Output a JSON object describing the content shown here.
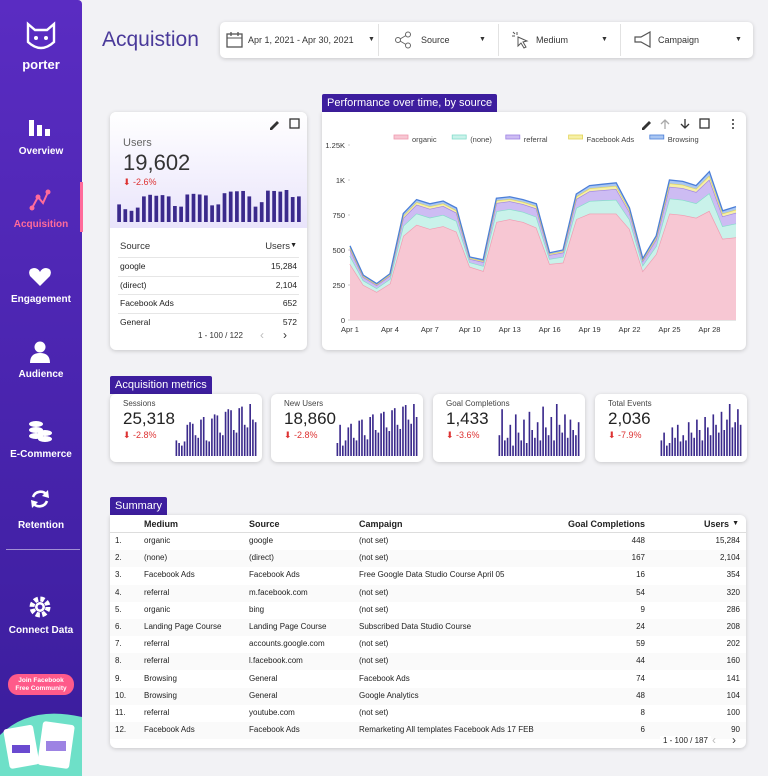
{
  "sidebar": {
    "logo": "porter",
    "nav": [
      "Overview",
      "Acquisition",
      "Engagement",
      "Audience",
      "E-Commerce",
      "Retention"
    ],
    "connect": "Connect Data",
    "community": [
      "Join Facebook",
      "Free Community"
    ]
  },
  "header": {
    "title": "Acquistion",
    "filters": [
      "Apr 1, 2021 - Apr 30, 2021",
      "Source",
      "Medium",
      "Campaign"
    ]
  },
  "users_card": {
    "label": "Users",
    "value": "19,602",
    "change": "-2.6%",
    "spark": [
      55,
      40,
      35,
      45,
      80,
      85,
      82,
      84,
      80,
      50,
      48,
      86,
      88,
      86,
      83,
      52,
      55,
      90,
      95,
      96,
      97,
      80,
      48,
      62,
      98,
      97,
      95,
      100,
      78,
      80
    ],
    "table": {
      "columns": [
        "Source",
        "Users"
      ],
      "rows": [
        [
          "google",
          "15,284"
        ],
        [
          "(direct)",
          "2,104"
        ],
        [
          "Facebook Ads",
          "652"
        ],
        [
          "General",
          "572"
        ]
      ]
    },
    "pagination": "1 - 100 / 122"
  },
  "performance": {
    "tab": "Performance over time, by source",
    "chart_data": {
      "type": "area",
      "stacked": true,
      "categories": [
        "Apr 1",
        null,
        null,
        "Apr 4",
        null,
        null,
        "Apr 7",
        null,
        null,
        "Apr 10",
        null,
        null,
        "Apr 13",
        null,
        null,
        "Apr 16",
        null,
        null,
        "Apr 19",
        null,
        null,
        "Apr 22",
        null,
        null,
        "Apr 25",
        null,
        null,
        "Apr 28",
        null,
        null
      ],
      "ylim": [
        0,
        1250
      ],
      "yticks": [
        0,
        250,
        500,
        750,
        {
          "value": 1000,
          "label": "1K"
        },
        {
          "value": 1250,
          "label": "1.25K"
        }
      ],
      "series": [
        {
          "name": "organic",
          "color": "#f7c7d3",
          "edge": "#f19ab0",
          "values": [
            400,
            250,
            200,
            260,
            600,
            680,
            650,
            670,
            630,
            380,
            350,
            700,
            720,
            700,
            660,
            400,
            410,
            720,
            760,
            760,
            760,
            650,
            350,
            470,
            760,
            750,
            730,
            780,
            580,
            590
          ]
        },
        {
          "name": "(none)",
          "color": "#c9f2ea",
          "edge": "#86dccb",
          "values": [
            58,
            32,
            27,
            32,
            72,
            81,
            81,
            81,
            77,
            32,
            36,
            77,
            72,
            72,
            77,
            36,
            41,
            81,
            90,
            95,
            99,
            68,
            41,
            58,
            108,
            108,
            104,
            126,
            90,
            99
          ]
        },
        {
          "name": "referral",
          "color": "#cdbcf3",
          "edge": "#9d83e3",
          "values": [
            46,
            24,
            21,
            24,
            56,
            63,
            63,
            63,
            59,
            24,
            28,
            59,
            56,
            56,
            59,
            28,
            31,
            63,
            70,
            73,
            77,
            52,
            31,
            46,
            84,
            84,
            80,
            98,
            70,
            77
          ]
        },
        {
          "name": "Facebook Ads",
          "color": "#f6f0a6",
          "edge": "#e2d45a",
          "values": [
            13,
            7,
            6,
            7,
            16,
            18,
            18,
            18,
            17,
            7,
            8,
            17,
            16,
            16,
            17,
            8,
            9,
            18,
            20,
            21,
            22,
            15,
            9,
            13,
            24,
            24,
            23,
            28,
            20,
            22
          ]
        },
        {
          "name": "Browsing",
          "color": "#a9c6f2",
          "edge": "#4c7fd8",
          "values": [
            13,
            7,
            6,
            7,
            16,
            18,
            18,
            18,
            17,
            7,
            8,
            17,
            16,
            16,
            17,
            8,
            9,
            18,
            20,
            21,
            22,
            15,
            9,
            13,
            24,
            24,
            23,
            28,
            20,
            22
          ]
        }
      ]
    }
  },
  "metrics": {
    "tab": "Acquisition metrics",
    "cards": [
      {
        "label": "Sessions",
        "value": "25,318",
        "change": "-2.8%",
        "spark": [
          30,
          25,
          20,
          28,
          60,
          65,
          62,
          40,
          35,
          70,
          75,
          30,
          28,
          72,
          80,
          78,
          45,
          40,
          85,
          90,
          88,
          50,
          45,
          92,
          95,
          60,
          55,
          100,
          70,
          65
        ]
      },
      {
        "label": "New Users",
        "value": "18,860",
        "change": "-2.8%",
        "spark": [
          25,
          60,
          20,
          30,
          55,
          62,
          35,
          30,
          68,
          70,
          40,
          32,
          75,
          80,
          50,
          45,
          82,
          85,
          55,
          48,
          88,
          92,
          60,
          52,
          95,
          98,
          70,
          62,
          100,
          75
        ]
      },
      {
        "label": "Goal Completions",
        "value": "1,433",
        "change": "-3.6%",
        "spark": [
          40,
          90,
          30,
          35,
          60,
          20,
          80,
          45,
          30,
          70,
          25,
          85,
          50,
          35,
          65,
          30,
          95,
          55,
          40,
          75,
          30,
          100,
          60,
          45,
          80,
          35,
          70,
          50,
          40,
          65
        ]
      },
      {
        "label": "Total Events",
        "value": "2,036",
        "change": "-7.9%",
        "spark": [
          30,
          45,
          20,
          25,
          55,
          35,
          60,
          28,
          40,
          30,
          65,
          45,
          35,
          70,
          50,
          30,
          75,
          55,
          40,
          80,
          60,
          45,
          85,
          50,
          70,
          100,
          55,
          65,
          90,
          60
        ]
      }
    ]
  },
  "summary": {
    "tab": "Summary",
    "columns": [
      "Medium",
      "Source",
      "Campaign",
      "Goal Completions",
      "Users"
    ],
    "rows": [
      [
        "1.",
        "organic",
        "google",
        "(not set)",
        "448",
        "15,284"
      ],
      [
        "2.",
        "(none)",
        "(direct)",
        "(not set)",
        "167",
        "2,104"
      ],
      [
        "3.",
        "Facebook Ads",
        "Facebook Ads",
        "Free Google Data Studio Course April 05",
        "16",
        "354"
      ],
      [
        "4.",
        "referral",
        "m.facebook.com",
        "(not set)",
        "54",
        "320"
      ],
      [
        "5.",
        "organic",
        "bing",
        "(not set)",
        "9",
        "286"
      ],
      [
        "6.",
        "Landing Page Course",
        "Landing Page Course",
        "Subscribed Data Studio Course",
        "24",
        "208"
      ],
      [
        "7.",
        "referral",
        "accounts.google.com",
        "(not set)",
        "59",
        "202"
      ],
      [
        "8.",
        "referral",
        "l.facebook.com",
        "(not set)",
        "44",
        "160"
      ],
      [
        "9.",
        "Browsing",
        "General",
        "Facebook Ads",
        "74",
        "141"
      ],
      [
        "10.",
        "Browsing",
        "General",
        "Google Analytics",
        "48",
        "104"
      ],
      [
        "11.",
        "referral",
        "youtube.com",
        "(not set)",
        "8",
        "100"
      ],
      [
        "12.",
        "Facebook Ads",
        "Facebook Ads",
        "Remarketing All templates Facebook Ads 17 FEB",
        "6",
        "90"
      ]
    ],
    "pagination": "1 - 100 / 187"
  }
}
